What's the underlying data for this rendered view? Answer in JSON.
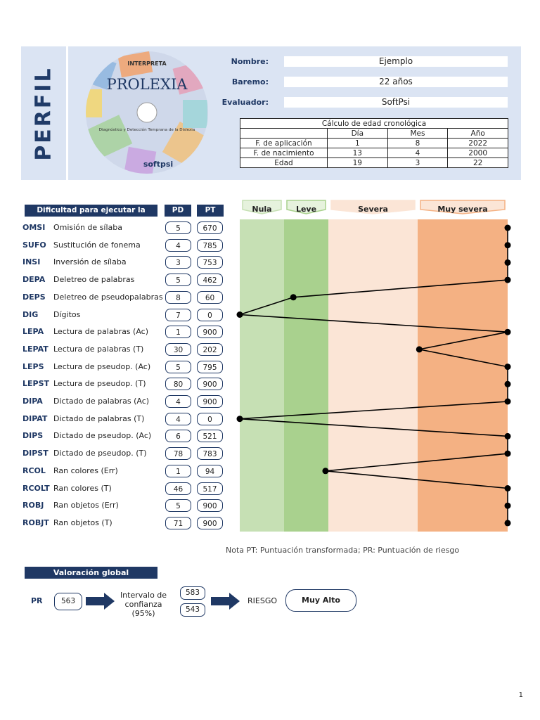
{
  "header": {
    "title": "PERFIL",
    "logo": {
      "brand": "INTERPRETA",
      "product": "PROLEXIA",
      "subtitle": "Diagnóstico y Detección Temprana de la Dislexia",
      "maker": "softpsi"
    },
    "fields": [
      {
        "label": "Nombre:",
        "value": "Ejemplo"
      },
      {
        "label": "Baremo:",
        "value": "22 años"
      },
      {
        "label": "Evaluador:",
        "value": "SoftPsi"
      }
    ],
    "age_table": {
      "title": "Cálculo de edad cronológica",
      "cols": [
        "Día",
        "Mes",
        "Año"
      ],
      "rows": [
        {
          "label": "F. de aplicación",
          "values": [
            "1",
            "8",
            "2022"
          ]
        },
        {
          "label": "F. de nacimiento",
          "values": [
            "13",
            "4",
            "2000"
          ]
        },
        {
          "label": "Edad",
          "values": [
            "19",
            "3",
            "22"
          ]
        }
      ]
    }
  },
  "tasks": {
    "header": "Dificultad para ejecutar la tarea",
    "pd_label": "PD",
    "pt_label": "PT",
    "rows": [
      {
        "code": "OMSI",
        "name": "Omisión de sílaba",
        "pd": "5",
        "pt": "670"
      },
      {
        "code": "SUFO",
        "name": "Sustitución de fonema",
        "pd": "4",
        "pt": "785"
      },
      {
        "code": "INSI",
        "name": "Inversión de sílaba",
        "pd": "3",
        "pt": "753"
      },
      {
        "code": "DEPA",
        "name": "Deletreo de palabras",
        "pd": "5",
        "pt": "462"
      },
      {
        "code": "DEPS",
        "name": "Deletreo de pseudopalabras",
        "pd": "8",
        "pt": "60"
      },
      {
        "code": "DIG",
        "name": "Dígitos",
        "pd": "7",
        "pt": "0"
      },
      {
        "code": "LEPA",
        "name": "Lectura de palabras (Ac)",
        "pd": "1",
        "pt": "900"
      },
      {
        "code": "LEPAT",
        "name": "Lectura de palabras (T)",
        "pd": "30",
        "pt": "202"
      },
      {
        "code": "LEPS",
        "name": "Lectura de pseudop. (Ac)",
        "pd": "5",
        "pt": "795"
      },
      {
        "code": "LEPST",
        "name": "Lectura de pseudop. (T)",
        "pd": "80",
        "pt": "900"
      },
      {
        "code": "DIPA",
        "name": "Dictado de palabras (Ac)",
        "pd": "4",
        "pt": "900"
      },
      {
        "code": "DIPAT",
        "name": "Dictado de palabras (T)",
        "pd": "4",
        "pt": "0"
      },
      {
        "code": "DIPS",
        "name": "Dictado de pseudop. (Ac)",
        "pd": "6",
        "pt": "521"
      },
      {
        "code": "DIPST",
        "name": "Dictado de pseudop. (T)",
        "pd": "78",
        "pt": "783"
      },
      {
        "code": "RCOL",
        "name": "Ran colores (Err)",
        "pd": "1",
        "pt": "94"
      },
      {
        "code": "RCOLT",
        "name": "Ran colores (T)",
        "pd": "46",
        "pt": "517"
      },
      {
        "code": "ROBJ",
        "name": "Ran objetos (Err)",
        "pd": "5",
        "pt": "900"
      },
      {
        "code": "ROBJT",
        "name": "Ran objetos (T)",
        "pd": "71",
        "pt": "900"
      }
    ]
  },
  "chart_data": {
    "type": "line",
    "categories": [
      "Nula",
      "Leve",
      "Severa",
      "Muy severa"
    ],
    "category_colors": [
      "#c6e0b4",
      "#a9d18e",
      "#fbe5d6",
      "#f4b183"
    ],
    "profile_points": [
      {
        "code": "OMSI",
        "x": 1.0
      },
      {
        "code": "SUFO",
        "x": 1.0
      },
      {
        "code": "INSI",
        "x": 1.0
      },
      {
        "code": "DEPA",
        "x": 1.0
      },
      {
        "code": "DEPS",
        "x": 0.2
      },
      {
        "code": "DIG",
        "x": 0.0
      },
      {
        "code": "LEPA",
        "x": 1.0
      },
      {
        "code": "LEPAT",
        "x": 0.67
      },
      {
        "code": "LEPS",
        "x": 1.0
      },
      {
        "code": "LEPST",
        "x": 1.0
      },
      {
        "code": "DIPA",
        "x": 1.0
      },
      {
        "code": "DIPAT",
        "x": 0.0
      },
      {
        "code": "DIPS",
        "x": 1.0
      },
      {
        "code": "DIPST",
        "x": 1.0
      },
      {
        "code": "RCOL",
        "x": 0.32
      },
      {
        "code": "RCOLT",
        "x": 1.0
      },
      {
        "code": "ROBJ",
        "x": 1.0
      },
      {
        "code": "ROBJT",
        "x": 1.0
      }
    ]
  },
  "note": "Nota PT: Puntuación transformada; PR: Puntuación de riesgo",
  "global": {
    "title": "Valoración global",
    "pr_label": "PR",
    "pr_value": "563",
    "interval_label_1": "Intervalo de",
    "interval_label_2": "confianza (95%)",
    "interval_high": "583",
    "interval_low": "543",
    "risk_label": "RIESGO",
    "risk_value": "Muy Alto"
  },
  "page_number": "1"
}
